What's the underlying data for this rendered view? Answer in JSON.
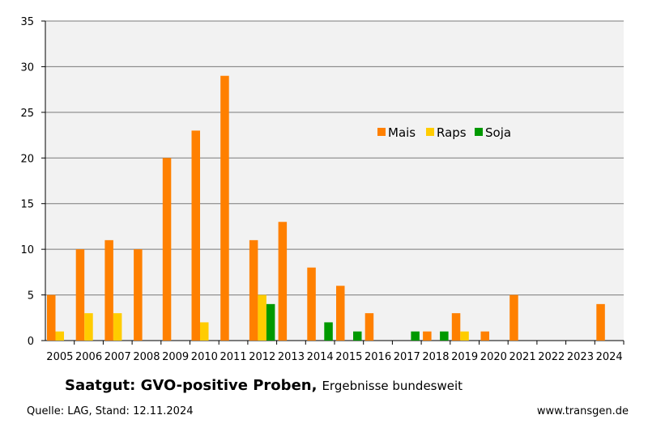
{
  "chart_data": {
    "type": "bar",
    "categories": [
      "2005",
      "2006",
      "2007",
      "2008",
      "2009",
      "2010",
      "2011",
      "2012",
      "2013",
      "2014",
      "2015",
      "2016",
      "2017",
      "2018",
      "2019",
      "2020",
      "2021",
      "2022",
      "2023",
      "2024"
    ],
    "series": [
      {
        "name": "Mais",
        "color": "#ff8000",
        "values": [
          5,
          10,
          11,
          10,
          20,
          23,
          29,
          11,
          13,
          8,
          6,
          3,
          0,
          1,
          3,
          1,
          5,
          0,
          0,
          4
        ]
      },
      {
        "name": "Raps",
        "color": "#ffcc00",
        "values": [
          1,
          3,
          3,
          0,
          0,
          2,
          0,
          5,
          0,
          0,
          0,
          0,
          0,
          0,
          1,
          0,
          0,
          0,
          0,
          0
        ]
      },
      {
        "name": "Soja",
        "color": "#009900",
        "values": [
          0,
          0,
          0,
          0,
          0,
          0,
          0,
          4,
          0,
          2,
          1,
          0,
          1,
          1,
          0,
          0,
          0,
          0,
          0,
          0
        ]
      }
    ],
    "ylim": [
      0,
      35
    ],
    "yticks": [
      0,
      5,
      10,
      15,
      20,
      25,
      30,
      35
    ],
    "grid": true,
    "legend_position": "upper-right-center"
  },
  "caption": {
    "title": "Saatgut:  GVO-positive Proben,",
    "subtitle": "Ergebnisse bundesweit"
  },
  "source": "Quelle: LAG, Stand: 12.11.2024",
  "website": "www.transgen.de"
}
